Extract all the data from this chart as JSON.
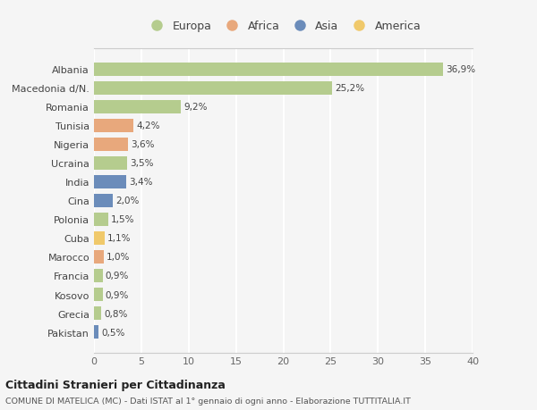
{
  "countries": [
    "Albania",
    "Macedonia d/N.",
    "Romania",
    "Tunisia",
    "Nigeria",
    "Ucraina",
    "India",
    "Cina",
    "Polonia",
    "Cuba",
    "Marocco",
    "Francia",
    "Kosovo",
    "Grecia",
    "Pakistan"
  ],
  "values": [
    36.9,
    25.2,
    9.2,
    4.2,
    3.6,
    3.5,
    3.4,
    2.0,
    1.5,
    1.1,
    1.0,
    0.9,
    0.9,
    0.8,
    0.5
  ],
  "labels": [
    "36,9%",
    "25,2%",
    "9,2%",
    "4,2%",
    "3,6%",
    "3,5%",
    "3,4%",
    "2,0%",
    "1,5%",
    "1,1%",
    "1,0%",
    "0,9%",
    "0,9%",
    "0,8%",
    "0,5%"
  ],
  "continents": [
    "Europa",
    "Europa",
    "Europa",
    "Africa",
    "Africa",
    "Europa",
    "Asia",
    "Asia",
    "Europa",
    "America",
    "Africa",
    "Europa",
    "Europa",
    "Europa",
    "Asia"
  ],
  "continent_colors": {
    "Europa": "#b5cc8e",
    "Africa": "#e8a87c",
    "Asia": "#6b8cba",
    "America": "#f0c96b"
  },
  "legend_order": [
    "Europa",
    "Africa",
    "Asia",
    "America"
  ],
  "xlim": [
    0,
    40
  ],
  "xticks": [
    0,
    5,
    10,
    15,
    20,
    25,
    30,
    35,
    40
  ],
  "title": "Cittadini Stranieri per Cittadinanza",
  "subtitle": "COMUNE DI MATELICA (MC) - Dati ISTAT al 1° gennaio di ogni anno - Elaborazione TUTTITALIA.IT",
  "bg_color": "#f5f5f5",
  "grid_color": "#ffffff",
  "bar_height": 0.72
}
